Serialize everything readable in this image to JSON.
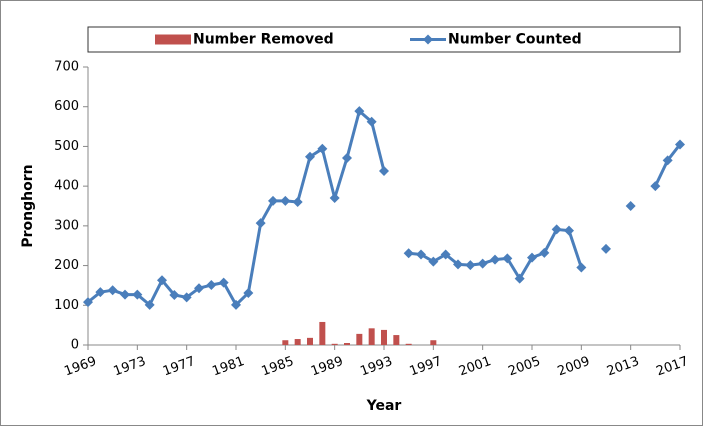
{
  "chart_data": {
    "type": "combo",
    "x_label": "Year",
    "y_label": "Pronghorn",
    "x": [
      1969,
      1970,
      1971,
      1972,
      1973,
      1974,
      1975,
      1976,
      1977,
      1978,
      1979,
      1980,
      1981,
      1982,
      1983,
      1984,
      1985,
      1986,
      1987,
      1988,
      1989,
      1990,
      1991,
      1992,
      1993,
      1994,
      1995,
      1996,
      1997,
      1998,
      1999,
      2000,
      2001,
      2002,
      2003,
      2004,
      2005,
      2006,
      2007,
      2008,
      2009,
      2010,
      2011,
      2012,
      2013,
      2014,
      2015,
      2016,
      2017
    ],
    "series": [
      {
        "name": "Number Removed",
        "type": "bar",
        "color": "#c0504d",
        "values": [
          null,
          null,
          null,
          null,
          null,
          null,
          null,
          null,
          null,
          null,
          null,
          null,
          null,
          null,
          null,
          null,
          12,
          15,
          18,
          58,
          3,
          5,
          28,
          42,
          38,
          25,
          3,
          null,
          12,
          null,
          null,
          null,
          null,
          null,
          null,
          null,
          null,
          null,
          null,
          null,
          null,
          null,
          null,
          null,
          null,
          null,
          null,
          null,
          null
        ]
      },
      {
        "name": "Number Counted",
        "type": "line",
        "color": "#4a7ebb",
        "values": [
          108,
          133,
          138,
          127,
          127,
          101,
          163,
          126,
          120,
          143,
          151,
          157,
          101,
          131,
          307,
          363,
          363,
          360,
          474,
          494,
          370,
          471,
          589,
          562,
          438,
          null,
          231,
          228,
          210,
          228,
          203,
          201,
          205,
          215,
          218,
          167,
          220,
          232,
          291,
          288,
          195,
          null,
          242,
          null,
          350,
          null,
          400,
          465,
          505
        ]
      }
    ],
    "xlim": [
      1969,
      2017
    ],
    "xticks": [
      1969,
      1973,
      1977,
      1981,
      1985,
      1989,
      1993,
      1997,
      2001,
      2005,
      2009,
      2013,
      2017
    ],
    "ylim": [
      0,
      700
    ],
    "yticks": [
      0,
      100,
      200,
      300,
      400,
      500,
      600,
      700
    ],
    "grid": false,
    "legend": "top"
  }
}
